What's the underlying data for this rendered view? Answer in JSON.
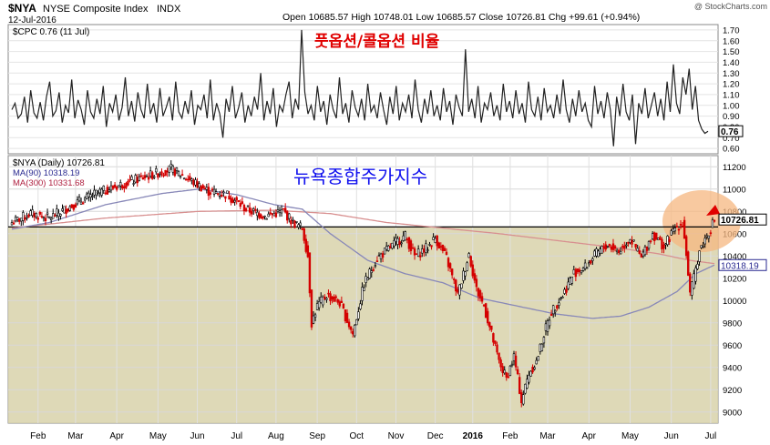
{
  "header": {
    "symbol": "$NYA",
    "name": "NYSE Composite Index",
    "exchange": "INDX",
    "date": "12-Jul-2016",
    "quote": "Open 10685.57 High 10748.01 Low 10685.57 Close 10726.81 Chg +99.61 (+0.94%)",
    "watermark": "@ StockCharts.com"
  },
  "colors": {
    "price_up": "#000000",
    "price_down": "#d40000",
    "ma90": "#8888b8",
    "ma300": "#d89090",
    "shade": "#d8d2aa",
    "highlight": "#f5b780",
    "arrow": "#e00000",
    "title_red": "#e00000",
    "title_blue": "#1010ee"
  },
  "chart_data": [
    {
      "type": "line",
      "panel": "top",
      "legend": "$CPC 0.76 (11 Jul)",
      "annotation": "풋옵션/콜옵션 비율",
      "ylim": [
        0.55,
        1.75
      ],
      "yticks": [
        "1.70",
        "1.60",
        "1.50",
        "1.40",
        "1.30",
        "1.20",
        "1.10",
        "1.00",
        "0.90",
        "0.80",
        "0.70",
        "0.60"
      ],
      "last_value_label": "0.76",
      "series": [
        {
          "name": "$CPC",
          "values": [
            0.96,
            1.02,
            0.88,
            0.92,
            1.08,
            0.84,
            1.14,
            0.93,
            0.88,
            1.03,
            0.86,
            1.08,
            1.22,
            0.9,
            0.95,
            1.12,
            0.84,
            1.0,
            0.93,
            1.24,
            0.88,
            1.05,
            0.96,
            0.82,
            1.14,
            0.94,
            0.88,
            1.06,
            0.92,
            1.18,
            0.8,
            1.02,
            0.94,
            1.1,
            0.86,
            0.98,
            1.26,
            0.9,
            1.04,
            0.85,
            1.12,
            0.96,
            0.88,
            1.2,
            0.92,
            1.02,
            0.84,
            1.16,
            0.9,
            0.98,
            1.08,
            0.86,
            1.22,
            0.94,
            0.88,
            1.04,
            0.92,
            1.14,
            0.82,
            1.0,
            0.96,
            1.1,
            0.88,
            1.24,
            0.86,
            1.02,
            0.92,
            0.7,
            1.06,
            0.94,
            1.18,
            0.88,
            0.98,
            1.12,
            0.84,
            1.0,
            0.9,
            1.08,
            0.96,
            1.3,
            0.86,
            1.04,
            0.92,
            1.16,
            0.8,
            1.0,
            0.94,
            1.1,
            1.22,
            0.88,
            1.06,
            0.96,
            1.7,
            1.12,
            0.92,
            1.0,
            0.86,
            1.18,
            0.94,
            1.04,
            0.82,
            1.1,
            0.96,
            0.88,
            1.26,
            0.92,
            1.02,
            0.84,
            1.14,
            0.98,
            0.9,
            1.06,
            0.86,
            1.2,
            0.94,
            1.0,
            0.88,
            1.12,
            0.96,
            0.82,
            1.08,
            0.92,
            1.18,
            0.86,
            1.02,
            0.94,
            1.1,
            0.88,
            1.24,
            0.96,
            0.84,
            1.06,
            0.92,
            1.14,
            0.9,
            1.0,
            0.86,
            1.16,
            0.94,
            1.04,
            0.82,
            1.1,
            0.98,
            0.9,
            1.52,
            0.94,
            1.06,
            0.88,
            1.18,
            0.84,
            1.02,
            0.96,
            1.12,
            0.9,
            1.0,
            0.86,
            1.2,
            0.94,
            1.04,
            0.88,
            1.14,
            0.92,
            1.02,
            0.84,
            1.22,
            0.96,
            0.9,
            1.08,
            0.86,
            1.16,
            0.94,
            1.0,
            0.88,
            1.1,
            0.92,
            1.24,
            0.96,
            0.84,
            1.06,
            0.9,
            1.14,
            0.94,
            1.02,
            0.86,
            0.8,
            1.18,
            0.92,
            1.04,
            0.88,
            1.12,
            0.96,
            0.62,
            1.08,
            0.9,
            1.2,
            0.94,
            0.86,
            1.1,
            0.64,
            1.02,
            0.92,
            1.16,
            0.88,
            1.0,
            1.12,
            0.9,
            1.06,
            0.86,
            1.22,
            0.94,
            1.38,
            1.02,
            0.92,
            1.26,
            1.1,
            1.34,
            0.96,
            1.18,
            0.86,
            0.78,
            0.74,
            0.76
          ]
        }
      ]
    },
    {
      "type": "candlestick",
      "panel": "bottom",
      "legend": [
        "$NYA (Daily) 10726.81",
        "MA(90) 10318.19",
        "MA(300) 10331.68"
      ],
      "annotation": "뉴욕종합주가지수",
      "ylim": [
        8900,
        11300
      ],
      "yticks": [
        11200,
        11000,
        10800,
        10600,
        10400,
        10200,
        10000,
        9800,
        9600,
        9400,
        9200,
        9000
      ],
      "ytick_labels": [
        "11200",
        "11000",
        "10800",
        "10600",
        "10400",
        "10200",
        "10000",
        "9800",
        "9600",
        "9400",
        "9200",
        "9000"
      ],
      "xticks": [
        "Feb",
        "Mar",
        "Apr",
        "May",
        "Jun",
        "Jul",
        "Aug",
        "Sep",
        "Oct",
        "Nov",
        "Dec",
        "2016",
        "Feb",
        "Mar",
        "Apr",
        "May",
        "Jun",
        "Jul"
      ],
      "xtick_index": [
        14,
        34,
        56,
        78,
        99,
        120,
        141,
        163,
        184,
        205,
        226,
        246,
        266,
        286,
        308,
        330,
        352,
        373
      ],
      "resistance_level": 10660,
      "last_close_label": "10726.81",
      "ma90_label": "10318.19",
      "close_anchors": [
        [
          0,
          10700
        ],
        [
          10,
          10780
        ],
        [
          20,
          10740
        ],
        [
          35,
          10880
        ],
        [
          45,
          10960
        ],
        [
          60,
          11050
        ],
        [
          75,
          11130
        ],
        [
          85,
          11180
        ],
        [
          95,
          11080
        ],
        [
          105,
          10980
        ],
        [
          115,
          10950
        ],
        [
          125,
          10820
        ],
        [
          135,
          10760
        ],
        [
          145,
          10800
        ],
        [
          150,
          10700
        ],
        [
          155,
          10650
        ],
        [
          158,
          10400
        ],
        [
          160,
          9800
        ],
        [
          163,
          9950
        ],
        [
          168,
          10050
        ],
        [
          175,
          9980
        ],
        [
          182,
          9700
        ],
        [
          188,
          10150
        ],
        [
          195,
          10380
        ],
        [
          205,
          10520
        ],
        [
          210,
          10580
        ],
        [
          215,
          10400
        ],
        [
          222,
          10480
        ],
        [
          226,
          10560
        ],
        [
          232,
          10380
        ],
        [
          238,
          10050
        ],
        [
          244,
          10420
        ],
        [
          248,
          10100
        ],
        [
          252,
          9950
        ],
        [
          256,
          9700
        ],
        [
          260,
          9450
        ],
        [
          264,
          9300
        ],
        [
          268,
          9500
        ],
        [
          272,
          9100
        ],
        [
          276,
          9350
        ],
        [
          280,
          9450
        ],
        [
          284,
          9700
        ],
        [
          288,
          9900
        ],
        [
          294,
          10050
        ],
        [
          300,
          10250
        ],
        [
          306,
          10300
        ],
        [
          312,
          10420
        ],
        [
          318,
          10500
        ],
        [
          324,
          10440
        ],
        [
          330,
          10560
        ],
        [
          336,
          10380
        ],
        [
          342,
          10600
        ],
        [
          348,
          10480
        ],
        [
          354,
          10650
        ],
        [
          358,
          10700
        ],
        [
          360,
          10420
        ],
        [
          362,
          10050
        ],
        [
          364,
          10200
        ],
        [
          367,
          10450
        ],
        [
          370,
          10550
        ],
        [
          373,
          10650
        ],
        [
          375,
          10726.81
        ]
      ],
      "ma90_anchors": [
        [
          0,
          10640
        ],
        [
          20,
          10700
        ],
        [
          50,
          10860
        ],
        [
          80,
          10960
        ],
        [
          100,
          11000
        ],
        [
          120,
          10950
        ],
        [
          140,
          10860
        ],
        [
          155,
          10820
        ],
        [
          170,
          10600
        ],
        [
          190,
          10360
        ],
        [
          210,
          10240
        ],
        [
          230,
          10160
        ],
        [
          250,
          10020
        ],
        [
          270,
          9950
        ],
        [
          290,
          9880
        ],
        [
          310,
          9840
        ],
        [
          325,
          9860
        ],
        [
          340,
          9940
        ],
        [
          355,
          10080
        ],
        [
          365,
          10240
        ],
        [
          375,
          10318.19
        ]
      ],
      "ma300_anchors": [
        [
          0,
          10650
        ],
        [
          50,
          10740
        ],
        [
          100,
          10800
        ],
        [
          140,
          10810
        ],
        [
          170,
          10780
        ],
        [
          200,
          10700
        ],
        [
          230,
          10650
        ],
        [
          260,
          10600
        ],
        [
          290,
          10540
        ],
        [
          320,
          10480
        ],
        [
          345,
          10420
        ],
        [
          362,
          10360
        ],
        [
          375,
          10331.68
        ]
      ]
    }
  ]
}
